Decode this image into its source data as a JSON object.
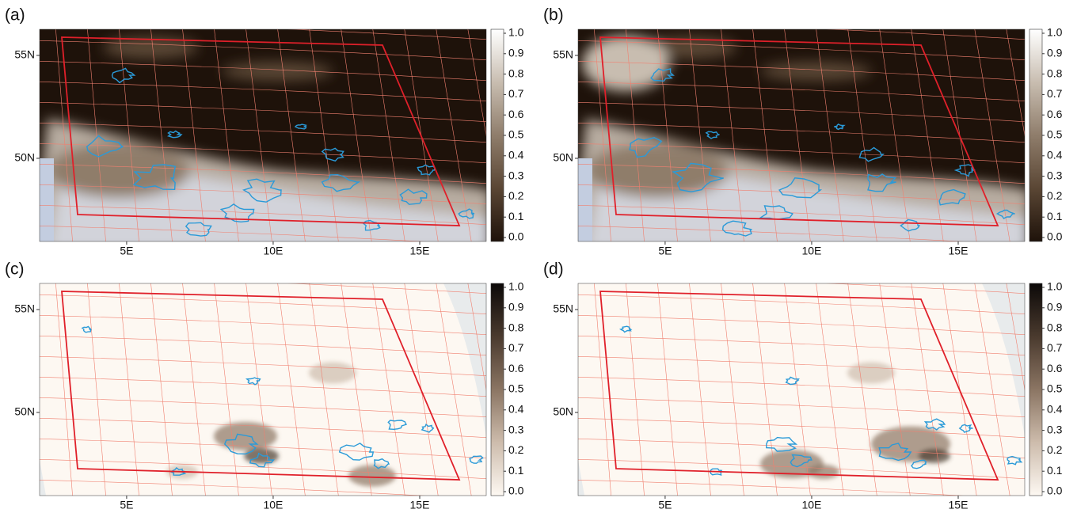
{
  "chart_data": [
    {
      "type": "map",
      "label": "(a)",
      "xlim": [
        2.03,
        17.27
      ],
      "ylim": [
        45.96,
        56.27
      ],
      "xticks": [
        {
          "value": 5,
          "label": "5E"
        },
        {
          "value": 10,
          "label": "10E"
        },
        {
          "value": 15,
          "label": "15E"
        }
      ],
      "yticks": [
        {
          "value": 50,
          "label": "50N"
        },
        {
          "value": 55,
          "label": "55N"
        }
      ],
      "clim": [
        0,
        1
      ],
      "colors": [
        "#1e120a",
        "#5a4634",
        "#8f7d6b",
        "#c8bdb0",
        "#ffffff"
      ],
      "cticks": [
        {
          "value": 0,
          "label": "0.0"
        },
        0.1,
        0.2,
        0.3,
        0.4,
        0.5,
        0.6,
        0.7,
        0.8,
        0.9,
        {
          "value": 1,
          "label": "1.0"
        }
      ]
    },
    {
      "type": "map",
      "label": "(b)",
      "xlim": [
        2.03,
        17.27
      ],
      "ylim": [
        45.96,
        56.27
      ],
      "xticks": [
        {
          "value": 5,
          "label": "5E"
        },
        {
          "value": 10,
          "label": "10E"
        },
        {
          "value": 15,
          "label": "15E"
        }
      ],
      "yticks": [
        {
          "value": 50,
          "label": "50N"
        },
        {
          "value": 55,
          "label": "55N"
        }
      ],
      "clim": [
        0,
        1
      ],
      "colors": [
        "#1e120a",
        "#5a4634",
        "#8f7d6b",
        "#c8bdb0",
        "#ffffff"
      ],
      "cticks": [
        {
          "value": 0,
          "label": "0.0"
        },
        0.1,
        0.2,
        0.3,
        0.4,
        0.5,
        0.6,
        0.7,
        0.8,
        0.9,
        {
          "value": 1,
          "label": "1.0"
        }
      ]
    },
    {
      "type": "map",
      "label": "(c)",
      "xlim": [
        2.03,
        17.27
      ],
      "ylim": [
        45.96,
        56.27
      ],
      "xticks": [
        {
          "value": 5,
          "label": "5E"
        },
        {
          "value": 10,
          "label": "10E"
        },
        {
          "value": 15,
          "label": "15E"
        }
      ],
      "yticks": [
        {
          "value": 50,
          "label": "50N"
        },
        {
          "value": 55,
          "label": "55N"
        }
      ],
      "clim": [
        0,
        1
      ],
      "colors": [
        "#fdf8f2",
        "#cdbcac",
        "#8b7563",
        "#4a3a2e",
        "#0c0908"
      ],
      "cticks": [
        {
          "value": 0,
          "label": "0.0"
        },
        0.1,
        0.2,
        0.3,
        0.4,
        0.5,
        0.6,
        0.7,
        0.8,
        0.9,
        {
          "value": 1,
          "label": "1.0"
        }
      ]
    },
    {
      "type": "map",
      "label": "(d)",
      "xlim": [
        2.03,
        17.27
      ],
      "ylim": [
        45.96,
        56.27
      ],
      "xticks": [
        {
          "value": 5,
          "label": "5E"
        },
        {
          "value": 10,
          "label": "10E"
        },
        {
          "value": 15,
          "label": "15E"
        }
      ],
      "yticks": [
        {
          "value": 50,
          "label": "50N"
        },
        {
          "value": 55,
          "label": "55N"
        }
      ],
      "clim": [
        0,
        1
      ],
      "colors": [
        "#fdf8f2",
        "#cdbcac",
        "#8b7563",
        "#4a3a2e",
        "#0c0908"
      ],
      "cticks": [
        {
          "value": 0,
          "label": "0.0"
        },
        0.1,
        0.2,
        0.3,
        0.4,
        0.5,
        0.6,
        0.7,
        0.8,
        0.9,
        {
          "value": 1,
          "label": "1.0"
        }
      ]
    }
  ]
}
